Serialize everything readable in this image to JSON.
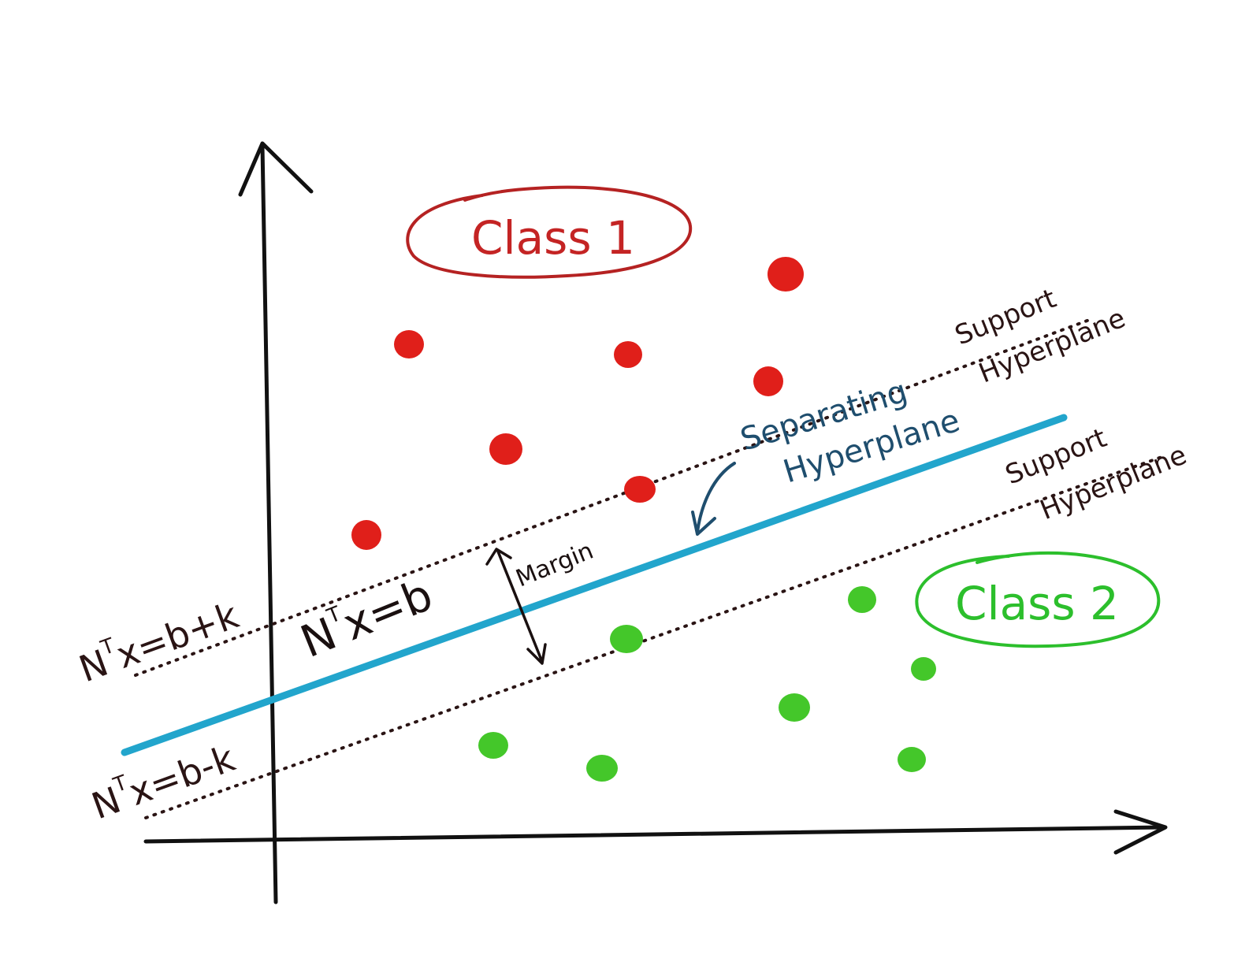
{
  "colors": {
    "axis": "#111111",
    "separating_line": "#22a5cc",
    "support_line": "#2a1414",
    "class1": "#e01f1a",
    "class1_outline": "#b52222",
    "class2": "#44c72a",
    "class2_outline": "#2cbf2c",
    "separating_label": "#1f4e6e"
  },
  "labels": {
    "class1": "Class 1",
    "class2": "Class 2",
    "separating": [
      "Separating",
      "Hyperplane"
    ],
    "support_upper": [
      "Support",
      "Hyperplane"
    ],
    "support_lower": [
      "Support",
      "Hyperplane"
    ],
    "margin": "Margin",
    "eq_upper": {
      "n": "N",
      "t": "T",
      "rest": "x=b+k"
    },
    "eq_middle": {
      "n": "N",
      "t": "T",
      "rest": "x=b"
    },
    "eq_lower": {
      "n": "N",
      "t": "T",
      "rest": "x=b-k"
    }
  }
}
